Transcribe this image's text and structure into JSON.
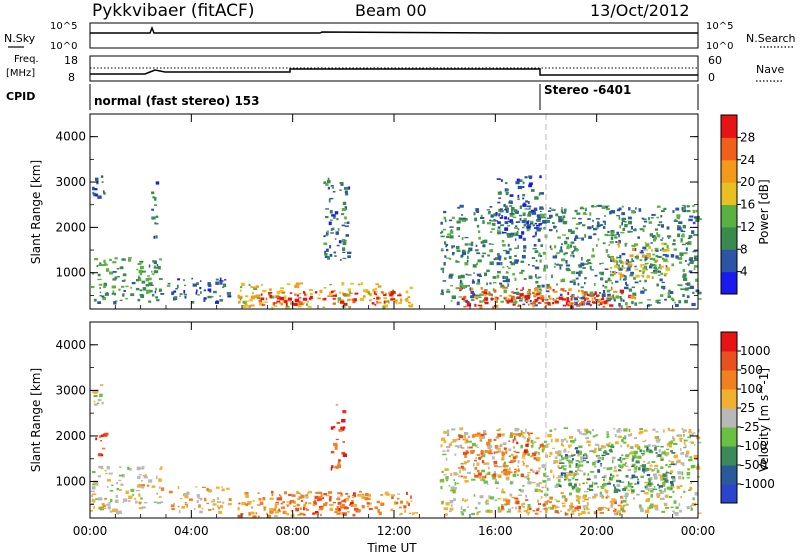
{
  "header": {
    "station": "Pykkvibaer (fitACF)",
    "beam": "Beam 00",
    "date": "13/Oct/2012"
  },
  "status_panels": {
    "nsky": {
      "label": "N.Sky",
      "right_label": "N.Search",
      "ticks_left": [
        "10^5",
        "10^0"
      ],
      "ticks_right": [
        "10^5",
        "10^0"
      ]
    },
    "freq": {
      "label_line1": "Freq.",
      "label_line2": "[MHz]",
      "ticks_left": [
        "18",
        "8"
      ],
      "ticks_right": [
        "60",
        "0"
      ],
      "right_label": "Nave"
    },
    "cpid": {
      "label": "CPID",
      "segments": [
        {
          "text": "normal (fast stereo) 153",
          "start_hour": 0
        },
        {
          "text": "Stereo -6401",
          "start_hour": 18
        }
      ]
    }
  },
  "colors": {
    "power_scale": [
      "#1a1aee",
      "#2e54a8",
      "#3a8a4e",
      "#5ab040",
      "#e8c022",
      "#f39a1a",
      "#f0601a",
      "#e81414"
    ],
    "velocity_scale": [
      "#2a44cc",
      "#2a5a9a",
      "#3a8a5a",
      "#6ac040",
      "#b8b8b8",
      "#f0b030",
      "#f08020",
      "#e85020",
      "#e81414"
    ]
  },
  "chart_data": [
    {
      "type": "heatmap",
      "title": "",
      "xlabel": "",
      "ylabel": "Slant Range [km]",
      "x_ticks": [
        "00:00",
        "04:00",
        "08:00",
        "12:00",
        "16:00",
        "20:00",
        "00:00"
      ],
      "y_ticks": [
        "1000",
        "2000",
        "3000",
        "4000"
      ],
      "xlim_hours": [
        0,
        24
      ],
      "ylim_km": [
        200,
        4500
      ],
      "colorbar": {
        "label": "Power [dB]",
        "ticks": [
          "4",
          "8",
          "12",
          "16",
          "20",
          "24",
          "28"
        ],
        "range": [
          0,
          30
        ]
      },
      "patches": [
        {
          "t0": 0.0,
          "t1": 2.8,
          "r0": 350,
          "r1": 1350,
          "level": 0.35
        },
        {
          "t0": 0.0,
          "t1": 0.6,
          "r0": 2700,
          "r1": 3150,
          "level": 0.15
        },
        {
          "t0": 2.4,
          "t1": 2.6,
          "r0": 1700,
          "r1": 3200,
          "level": 0.2
        },
        {
          "t0": 3.0,
          "t1": 5.5,
          "r0": 350,
          "r1": 900,
          "level": 0.2
        },
        {
          "t0": 5.8,
          "t1": 12.8,
          "r0": 250,
          "r1": 800,
          "level": 0.6
        },
        {
          "t0": 6.5,
          "t1": 12.2,
          "r0": 300,
          "r1": 600,
          "level": 0.92
        },
        {
          "t0": 9.2,
          "t1": 10.2,
          "r0": 1300,
          "r1": 3100,
          "level": 0.25
        },
        {
          "t0": 13.8,
          "t1": 24.0,
          "r0": 300,
          "r1": 2500,
          "level": 0.3
        },
        {
          "t0": 14.5,
          "t1": 21.5,
          "r0": 250,
          "r1": 700,
          "level": 0.8
        },
        {
          "t0": 15.5,
          "t1": 20.5,
          "r0": 300,
          "r1": 550,
          "level": 0.95
        },
        {
          "t0": 16.0,
          "t1": 17.8,
          "r0": 1800,
          "r1": 3150,
          "level": 0.18
        },
        {
          "t0": 20.5,
          "t1": 22.8,
          "r0": 900,
          "r1": 1700,
          "level": 0.55
        }
      ]
    },
    {
      "type": "heatmap",
      "title": "",
      "xlabel": "Time UT",
      "ylabel": "Slant Range [km]",
      "x_ticks": [
        "00:00",
        "04:00",
        "08:00",
        "12:00",
        "16:00",
        "20:00",
        "00:00"
      ],
      "y_ticks": [
        "1000",
        "2000",
        "3000",
        "4000"
      ],
      "xlim_hours": [
        0,
        24
      ],
      "ylim_km": [
        200,
        4500
      ],
      "colorbar": {
        "label": "Velocity [m s^-1]",
        "ticks": [
          "1000",
          "500",
          "100",
          "25",
          "-25",
          "-100",
          "-500",
          "-1000"
        ],
        "range": [
          -1200,
          1200
        ]
      },
      "patches": [
        {
          "t0": 0.0,
          "t1": 2.8,
          "r0": 350,
          "r1": 1350,
          "level": 0.55
        },
        {
          "t0": 0.0,
          "t1": 0.5,
          "r0": 2700,
          "r1": 3150,
          "level": 0.5
        },
        {
          "t0": 0.2,
          "t1": 0.6,
          "r0": 1600,
          "r1": 2100,
          "level": 0.8
        },
        {
          "t0": 3.0,
          "t1": 5.5,
          "r0": 350,
          "r1": 900,
          "level": 0.6
        },
        {
          "t0": 5.8,
          "t1": 12.8,
          "r0": 250,
          "r1": 800,
          "level": 0.7
        },
        {
          "t0": 7.5,
          "t1": 11.0,
          "r0": 300,
          "r1": 800,
          "level": 0.78
        },
        {
          "t0": 9.5,
          "t1": 10.0,
          "r0": 1300,
          "r1": 2700,
          "level": 0.85
        },
        {
          "t0": 13.8,
          "t1": 24.0,
          "r0": 300,
          "r1": 2200,
          "level": 0.5
        },
        {
          "t0": 14.5,
          "t1": 17.8,
          "r0": 1100,
          "r1": 2100,
          "level": 0.75
        },
        {
          "t0": 16.0,
          "t1": 21.0,
          "r0": 300,
          "r1": 700,
          "level": 0.72
        },
        {
          "t0": 18.5,
          "t1": 23.0,
          "r0": 800,
          "r1": 1800,
          "level": 0.3
        }
      ]
    }
  ]
}
